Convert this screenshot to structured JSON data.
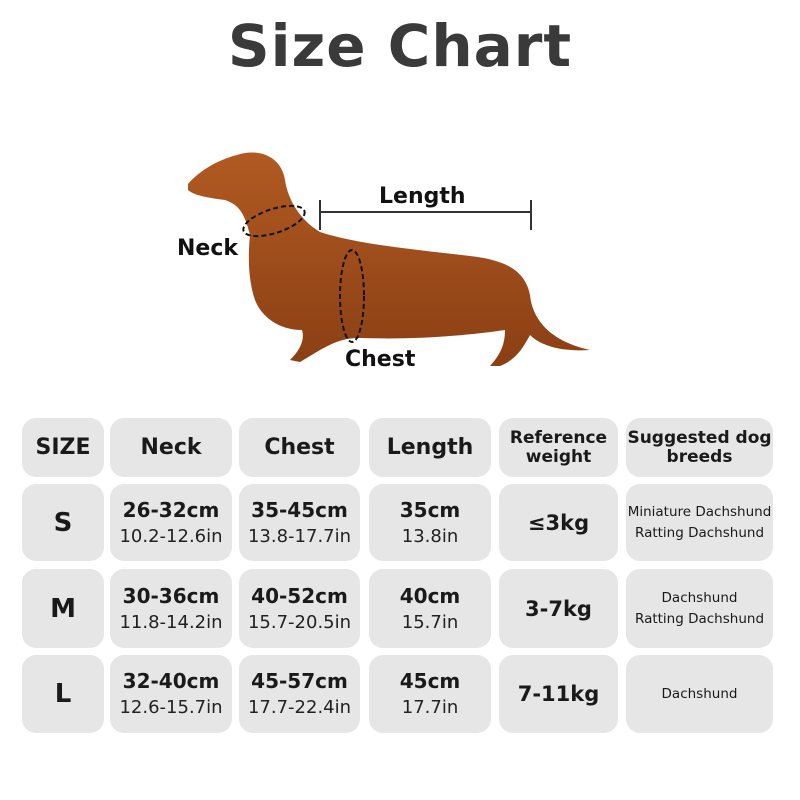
{
  "title": "Size Chart",
  "diagram": {
    "labels": {
      "neck": "Neck",
      "length": "Length",
      "chest": "Chest"
    },
    "dog_color": "#a3521f"
  },
  "table": {
    "headers": [
      "SIZE",
      "Neck",
      "Chest",
      "Length",
      "Reference weight",
      "Suggested dog breeds"
    ],
    "rows": [
      {
        "size": "S",
        "neck_cm": "26-32cm",
        "neck_in": "10.2-12.6in",
        "chest_cm": "35-45cm",
        "chest_in": "13.8-17.7in",
        "length_cm": "35cm",
        "length_in": "13.8in",
        "weight": "≤3kg",
        "breeds": [
          "Miniature Dachshund",
          "Ratting Dachshund"
        ]
      },
      {
        "size": "M",
        "neck_cm": "30-36cm",
        "neck_in": "11.8-14.2in",
        "chest_cm": "40-52cm",
        "chest_in": "15.7-20.5in",
        "length_cm": "40cm",
        "length_in": "15.7in",
        "weight": "3-7kg",
        "breeds": [
          "Dachshund",
          "Ratting Dachshund"
        ]
      },
      {
        "size": "L",
        "neck_cm": "32-40cm",
        "neck_in": "12.6-15.7in",
        "chest_cm": "45-57cm",
        "chest_in": "17.7-22.4in",
        "length_cm": "45cm",
        "length_in": "17.7in",
        "weight": "7-11kg",
        "breeds": [
          "Dachshund"
        ]
      }
    ]
  }
}
